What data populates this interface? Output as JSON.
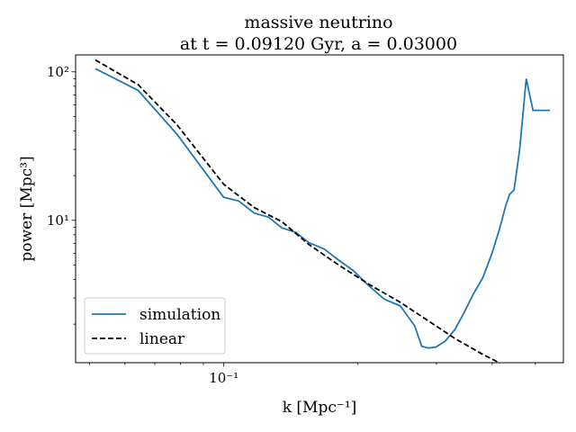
{
  "chart_data": {
    "type": "line",
    "title": "massive neutrino",
    "subtitle": "at t = 0.09120 Gyr, a = 0.03000",
    "xlabel": "k [Mpc⁻¹]",
    "ylabel": "power [Mpc³]",
    "xscale": "log",
    "yscale": "log",
    "xlim": [
      0.0465,
      0.578
    ],
    "ylim": [
      1.1,
      130
    ],
    "grid": false,
    "legend_position": "lower-left",
    "x_ticks": [
      {
        "value": 0.1,
        "label": "10⁻¹"
      }
    ],
    "y_ticks": [
      {
        "value": 10,
        "label": "10¹"
      },
      {
        "value": 100,
        "label": "10²"
      }
    ],
    "series": [
      {
        "name": "simulation",
        "color": "#1f77b4",
        "style": "solid",
        "x": [
          0.0515,
          0.0642,
          0.0785,
          0.0999,
          0.108,
          0.117,
          0.126,
          0.135,
          0.145,
          0.155,
          0.168,
          0.181,
          0.195,
          0.212,
          0.229,
          0.249,
          0.268,
          0.278,
          0.288,
          0.299,
          0.314,
          0.33,
          0.345,
          0.363,
          0.381,
          0.399,
          0.415,
          0.429,
          0.438,
          0.448,
          0.461,
          0.477,
          0.494,
          0.512,
          0.527,
          0.539
        ],
        "y": [
          105,
          75,
          38,
          14.3,
          13.5,
          11.2,
          10.5,
          8.9,
          8.3,
          7.1,
          6.4,
          5.4,
          4.6,
          3.6,
          2.95,
          2.65,
          1.95,
          1.42,
          1.38,
          1.4,
          1.54,
          1.84,
          2.35,
          3.2,
          4.1,
          5.9,
          8.6,
          12.5,
          15.0,
          16.0,
          30.0,
          90.0,
          55.0,
          55.0,
          55.0,
          55.0
        ]
      },
      {
        "name": "linear",
        "color": "#000000",
        "style": "dashed",
        "x": [
          0.0515,
          0.0642,
          0.0785,
          0.0999,
          0.117,
          0.135,
          0.155,
          0.181,
          0.212,
          0.249,
          0.288,
          0.33,
          0.381,
          0.415
        ],
        "y": [
          120,
          82,
          44,
          17.5,
          12.2,
          9.8,
          6.9,
          5.0,
          3.7,
          2.8,
          2.1,
          1.6,
          1.25,
          1.1
        ]
      }
    ]
  }
}
